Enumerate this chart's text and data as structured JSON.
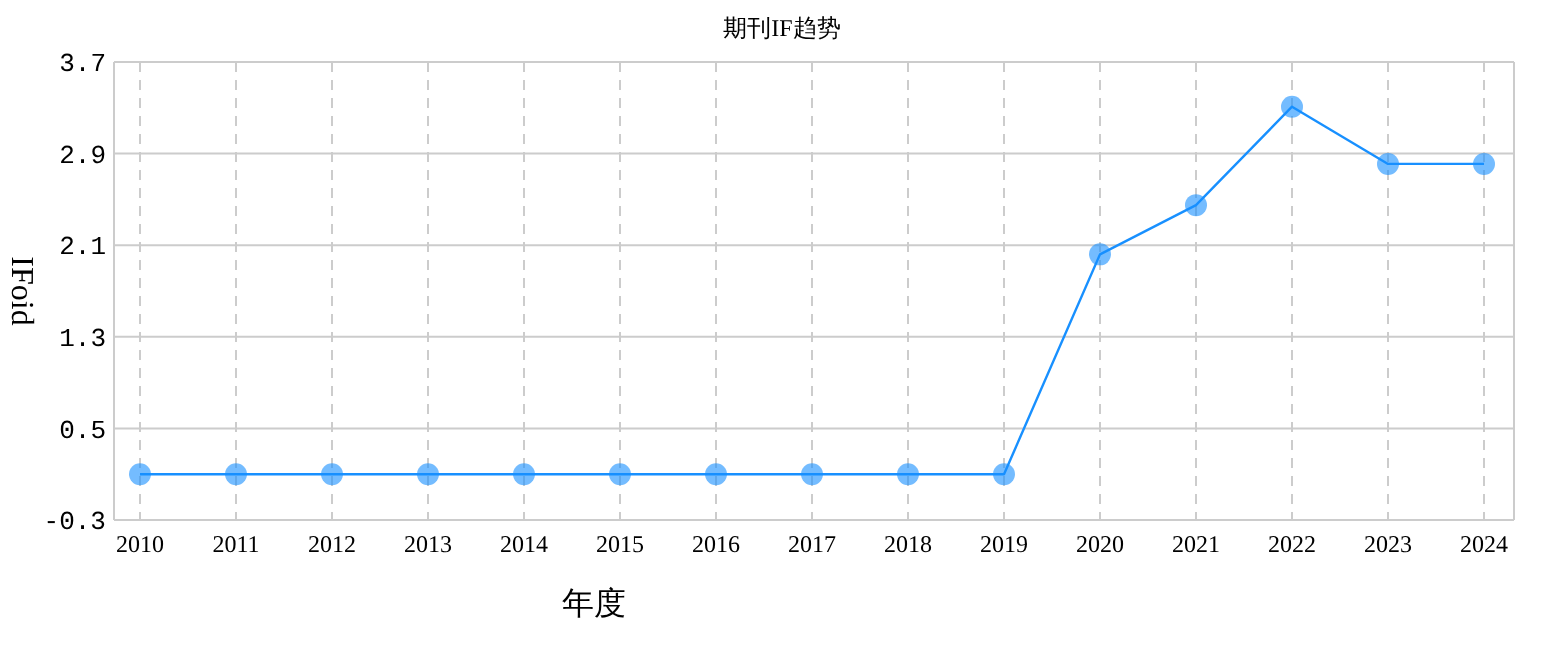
{
  "chart_data": {
    "type": "line",
    "title": "期刊IF趋势",
    "xlabel": "年度",
    "ylabel": "IFoid",
    "categories": [
      "2010",
      "2011",
      "2012",
      "2013",
      "2014",
      "2015",
      "2016",
      "2017",
      "2018",
      "2019",
      "2020",
      "2021",
      "2022",
      "2023",
      "2024"
    ],
    "series": [
      {
        "color": "#1890ff",
        "values": [
          0.1,
          0.1,
          0.1,
          0.1,
          0.1,
          0.1,
          0.1,
          0.1,
          0.1,
          0.1,
          2.02,
          2.45,
          3.31,
          2.81,
          2.81
        ]
      }
    ],
    "ylim": [
      -0.3,
      3.7
    ],
    "yticks": [
      -0.3,
      0.5,
      1.3,
      2.1,
      2.9,
      3.7
    ],
    "grid": true,
    "marker": "circle",
    "line_style": "solid"
  }
}
